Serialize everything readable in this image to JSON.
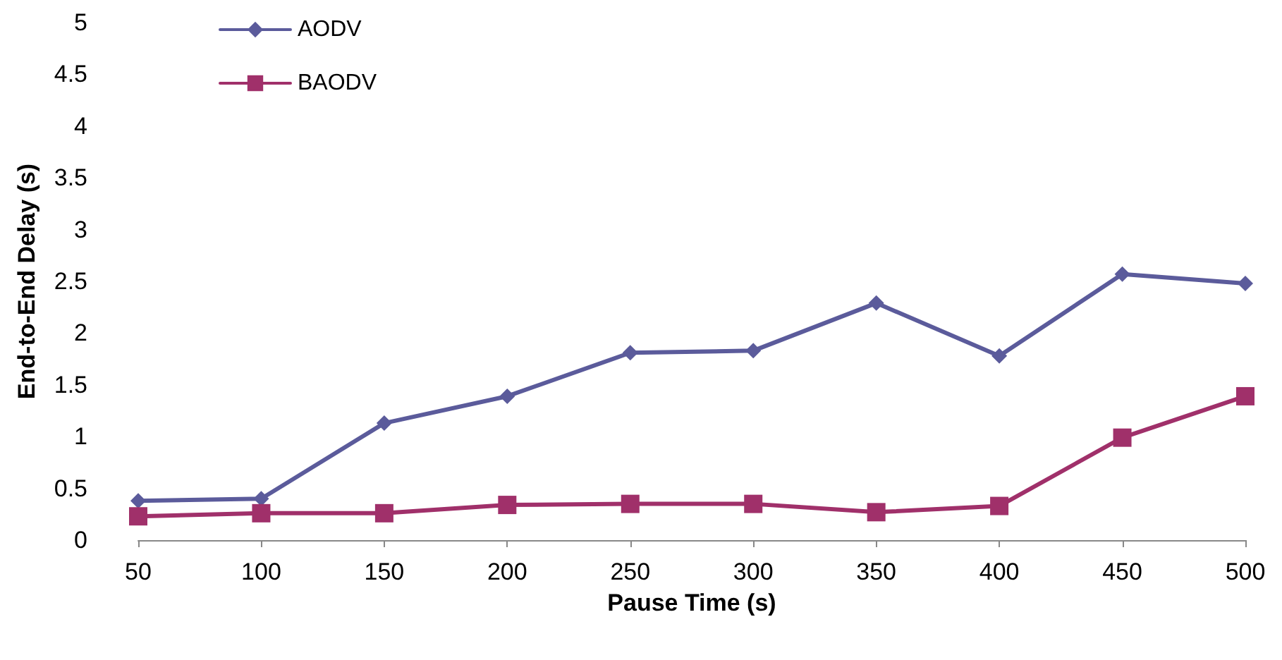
{
  "chart_data": {
    "type": "line",
    "xlabel": "Pause Time (s)",
    "ylabel": "End-to-End Delay (s)",
    "categories": [
      "50",
      "100",
      "150",
      "200",
      "250",
      "300",
      "350",
      "400",
      "450",
      "500"
    ],
    "series": [
      {
        "name": "AODV",
        "color": "#5b5b9b",
        "marker": "diamond",
        "values": [
          0.38,
          0.4,
          1.13,
          1.39,
          1.81,
          1.83,
          2.29,
          1.78,
          2.57,
          2.48
        ]
      },
      {
        "name": "BAODV",
        "color": "#a0306a",
        "marker": "square",
        "values": [
          0.23,
          0.26,
          0.26,
          0.34,
          0.35,
          0.35,
          0.27,
          0.33,
          0.99,
          1.39
        ]
      }
    ],
    "ylim": [
      0,
      5
    ],
    "yticks": [
      0,
      0.5,
      1,
      1.5,
      2,
      2.5,
      3,
      3.5,
      4,
      4.5,
      5
    ],
    "grid": false,
    "legend": "top left",
    "line_style": "solid"
  }
}
